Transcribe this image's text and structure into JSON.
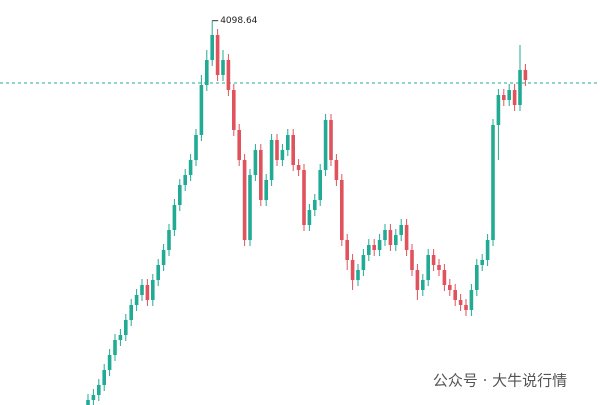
{
  "chart_data": {
    "type": "candlestick",
    "ylim": [
      3330,
      4140
    ],
    "up_color": "#22ab94",
    "down_color": "#e0525c",
    "price_line": 3974,
    "price_line_color": "#22ab94",
    "open": [
      3330,
      3340,
      3350,
      3370,
      3400,
      3430,
      3460,
      3470,
      3500,
      3530,
      3550,
      3570,
      3540,
      3580,
      3610,
      3640,
      3680,
      3730,
      3770,
      3790,
      3820,
      3870,
      3970,
      4020,
      4070,
      3990,
      4020,
      3960,
      3880,
      3820,
      3660,
      3790,
      3840,
      3740,
      3780,
      3860,
      3820,
      3840,
      3870,
      3810,
      3800,
      3690,
      3720,
      3740,
      3800,
      3900,
      3820,
      3780,
      3660,
      3620,
      3580,
      3600,
      3630,
      3650,
      3640,
      3660,
      3680,
      3650,
      3670,
      3690,
      3640,
      3600,
      3560,
      3580,
      3630,
      3610,
      3600,
      3570,
      3560,
      3540,
      3530,
      3520,
      3560,
      3610,
      3620,
      3660,
      3890,
      3950,
      3940,
      3960,
      3930,
      4000
    ],
    "high": [
      3352,
      3362,
      3382,
      3412,
      3442,
      3472,
      3482,
      3512,
      3542,
      3562,
      3582,
      3582,
      3592,
      3622,
      3652,
      3692,
      3742,
      3782,
      3802,
      3832,
      3882,
      3990,
      4040,
      4098.64,
      4082,
      4040,
      4032,
      3972,
      3892,
      3832,
      3802,
      3852,
      3852,
      3792,
      3872,
      3872,
      3852,
      3882,
      3882,
      3822,
      3812,
      3732,
      3752,
      3812,
      3912,
      3912,
      3832,
      3792,
      3672,
      3632,
      3612,
      3642,
      3662,
      3662,
      3672,
      3692,
      3692,
      3682,
      3702,
      3702,
      3652,
      3612,
      3592,
      3642,
      3642,
      3622,
      3612,
      3582,
      3572,
      3552,
      3542,
      3572,
      3622,
      3632,
      3672,
      3902,
      3962,
      3962,
      3972,
      3972,
      4050,
      4012
    ],
    "low": [
      3318,
      3328,
      3338,
      3358,
      3388,
      3418,
      3448,
      3458,
      3488,
      3518,
      3538,
      3528,
      3528,
      3568,
      3598,
      3628,
      3668,
      3718,
      3758,
      3778,
      3808,
      3858,
      3958,
      4008,
      3978,
      3978,
      3948,
      3868,
      3808,
      3648,
      3648,
      3778,
      3728,
      3728,
      3768,
      3808,
      3808,
      3828,
      3798,
      3788,
      3678,
      3678,
      3708,
      3728,
      3788,
      3808,
      3768,
      3648,
      3600,
      3560,
      3568,
      3588,
      3618,
      3628,
      3628,
      3648,
      3638,
      3638,
      3658,
      3628,
      3588,
      3540,
      3548,
      3568,
      3598,
      3588,
      3558,
      3548,
      3528,
      3518,
      3508,
      3508,
      3548,
      3598,
      3608,
      3648,
      3820,
      3928,
      3928,
      3918,
      3918,
      3968
    ],
    "close": [
      3340,
      3350,
      3370,
      3400,
      3430,
      3460,
      3470,
      3500,
      3530,
      3550,
      3570,
      3540,
      3580,
      3610,
      3640,
      3680,
      3730,
      3770,
      3790,
      3820,
      3870,
      3970,
      4020,
      4070,
      3990,
      4020,
      3960,
      3880,
      3820,
      3660,
      3790,
      3840,
      3740,
      3780,
      3860,
      3820,
      3840,
      3870,
      3810,
      3800,
      3690,
      3720,
      3740,
      3800,
      3900,
      3820,
      3780,
      3660,
      3620,
      3580,
      3600,
      3630,
      3650,
      3640,
      3660,
      3680,
      3650,
      3670,
      3690,
      3640,
      3600,
      3560,
      3580,
      3630,
      3610,
      3600,
      3570,
      3560,
      3540,
      3530,
      3520,
      3560,
      3610,
      3620,
      3660,
      3890,
      3950,
      3940,
      3960,
      3930,
      4000,
      3980
    ]
  },
  "watermark": "公众号 · 大牛说行情"
}
